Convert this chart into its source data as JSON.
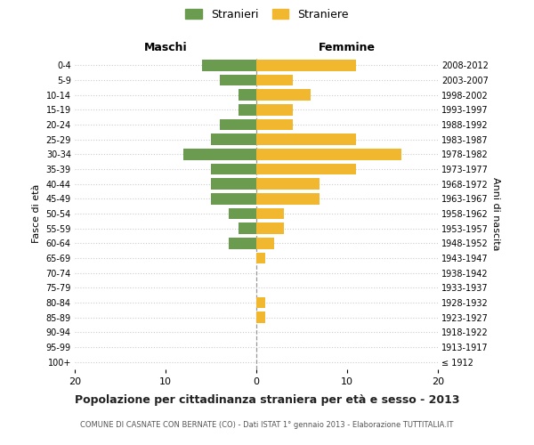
{
  "age_groups": [
    "100+",
    "95-99",
    "90-94",
    "85-89",
    "80-84",
    "75-79",
    "70-74",
    "65-69",
    "60-64",
    "55-59",
    "50-54",
    "45-49",
    "40-44",
    "35-39",
    "30-34",
    "25-29",
    "20-24",
    "15-19",
    "10-14",
    "5-9",
    "0-4"
  ],
  "birth_years": [
    "≤ 1912",
    "1913-1917",
    "1918-1922",
    "1923-1927",
    "1928-1932",
    "1933-1937",
    "1938-1942",
    "1943-1947",
    "1948-1952",
    "1953-1957",
    "1958-1962",
    "1963-1967",
    "1968-1972",
    "1973-1977",
    "1978-1982",
    "1983-1987",
    "1988-1992",
    "1993-1997",
    "1998-2002",
    "2003-2007",
    "2008-2012"
  ],
  "maschi": [
    0,
    0,
    0,
    0,
    0,
    0,
    0,
    0,
    3,
    2,
    3,
    5,
    5,
    5,
    8,
    5,
    4,
    2,
    2,
    4,
    6
  ],
  "femmine": [
    0,
    0,
    0,
    1,
    1,
    0,
    0,
    1,
    2,
    3,
    3,
    7,
    7,
    11,
    16,
    11,
    4,
    4,
    6,
    4,
    11
  ],
  "color_maschi": "#6b9b4e",
  "color_femmine": "#f0b72f",
  "title": "Popolazione per cittadinanza straniera per età e sesso - 2013",
  "subtitle": "COMUNE DI CASNATE CON BERNATE (CO) - Dati ISTAT 1° gennaio 2013 - Elaborazione TUTTITALIA.IT",
  "ylabel_left": "Fasce di età",
  "ylabel_right": "Anni di nascita",
  "xlabel_left": "Maschi",
  "xlabel_right": "Femmine",
  "legend_maschi": "Stranieri",
  "legend_femmine": "Straniere",
  "xlim": 20,
  "background_color": "#ffffff",
  "grid_color": "#cccccc"
}
